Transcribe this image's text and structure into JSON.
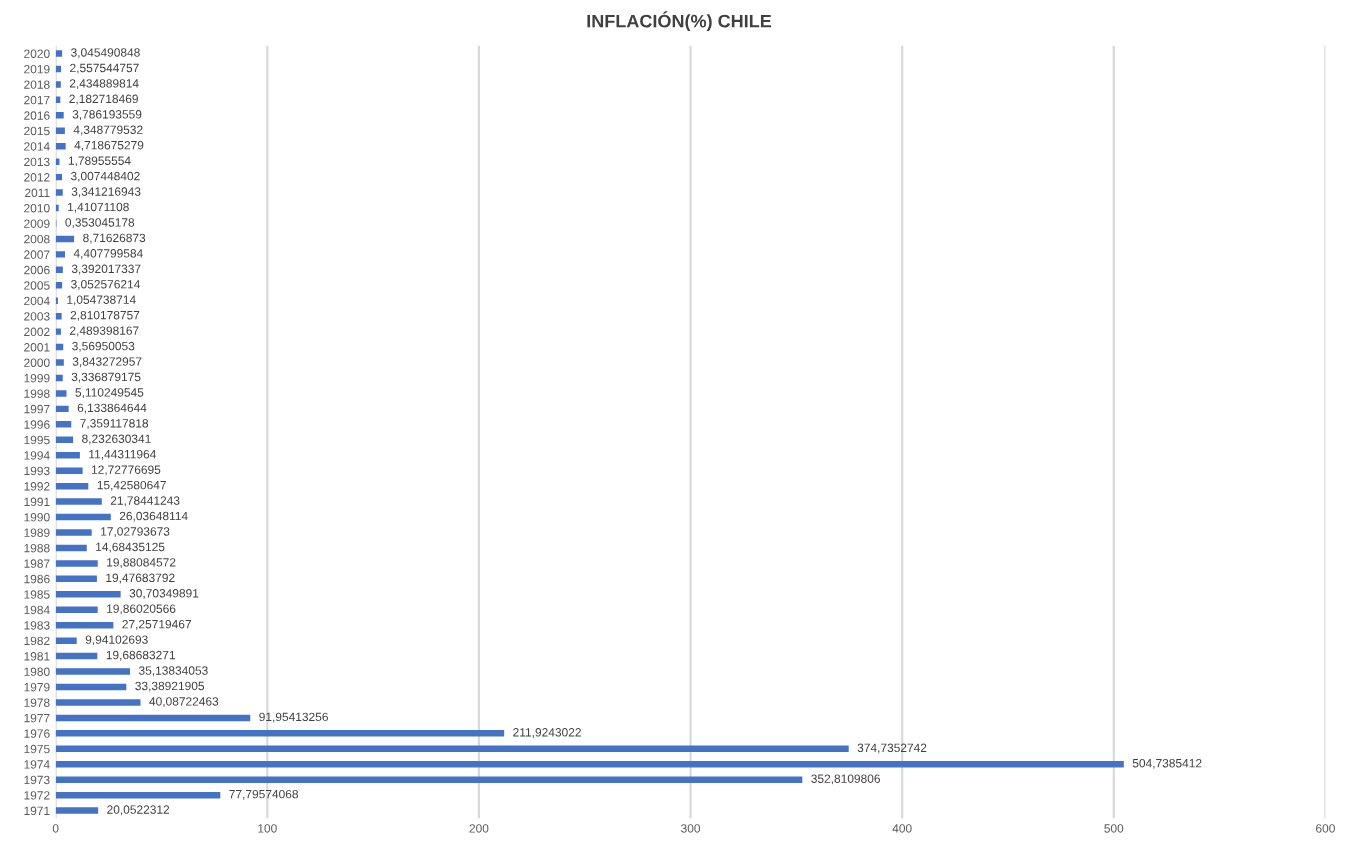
{
  "chart_data": {
    "type": "bar",
    "orientation": "horizontal",
    "title": "INFLACIÓN(%) CHILE",
    "categories": [
      "2020",
      "2019",
      "2018",
      "2017",
      "2016",
      "2015",
      "2014",
      "2013",
      "2012",
      "2011",
      "2010",
      "2009",
      "2008",
      "2007",
      "2006",
      "2005",
      "2004",
      "2003",
      "2002",
      "2001",
      "2000",
      "1999",
      "1998",
      "1997",
      "1996",
      "1995",
      "1994",
      "1993",
      "1992",
      "1991",
      "1990",
      "1989",
      "1988",
      "1987",
      "1986",
      "1985",
      "1984",
      "1983",
      "1982",
      "1981",
      "1980",
      "1979",
      "1978",
      "1977",
      "1976",
      "1975",
      "1974",
      "1973",
      "1972",
      "1971"
    ],
    "values": [
      3.045490848,
      2.557544757,
      2.434889814,
      2.182718469,
      3.786193559,
      4.348779532,
      4.718675279,
      1.78955554,
      3.007448402,
      3.341216943,
      1.41071108,
      0.353045178,
      8.71626873,
      4.407799584,
      3.392017337,
      3.052576214,
      1.054738714,
      2.810178757,
      2.489398167,
      3.56950053,
      3.843272957,
      3.336879175,
      5.110249545,
      6.133864644,
      7.359117818,
      8.232630341,
      11.44311964,
      12.72776695,
      15.42580647,
      21.78441243,
      26.03648114,
      17.02793673,
      14.68435125,
      19.88084572,
      19.47683792,
      30.70349891,
      19.86020566,
      27.25719467,
      9.94102693,
      19.68683271,
      35.13834053,
      33.38921905,
      40.08722463,
      91.95413256,
      211.9243022,
      374.7352742,
      504.7385412,
      352.8109806,
      77.79574068,
      20.0522312
    ],
    "value_labels": [
      "3,045490848",
      "2,557544757",
      "2,434889814",
      "2,182718469",
      "3,786193559",
      "4,348779532",
      "4,718675279",
      "1,78955554",
      "3,007448402",
      "3,341216943",
      "1,41071108",
      "0,353045178",
      "8,71626873",
      "4,407799584",
      "3,392017337",
      "3,052576214",
      "1,054738714",
      "2,810178757",
      "2,489398167",
      "3,56950053",
      "3,843272957",
      "3,336879175",
      "5,110249545",
      "6,133864644",
      "7,359117818",
      "8,232630341",
      "11,44311964",
      "12,72776695",
      "15,42580647",
      "21,78441243",
      "26,03648114",
      "17,02793673",
      "14,68435125",
      "19,88084572",
      "19,47683792",
      "30,70349891",
      "19,86020566",
      "27,25719467",
      "9,94102693",
      "19,68683271",
      "35,13834053",
      "33,38921905",
      "40,08722463",
      "91,95413256",
      "211,9243022",
      "374,7352742",
      "504,7385412",
      "352,8109806",
      "77,79574068",
      "20,0522312"
    ],
    "color": "#4472c4",
    "xlim": [
      0,
      600
    ],
    "xticks": [
      0,
      100,
      200,
      300,
      400,
      500,
      600
    ],
    "grid": "x"
  }
}
